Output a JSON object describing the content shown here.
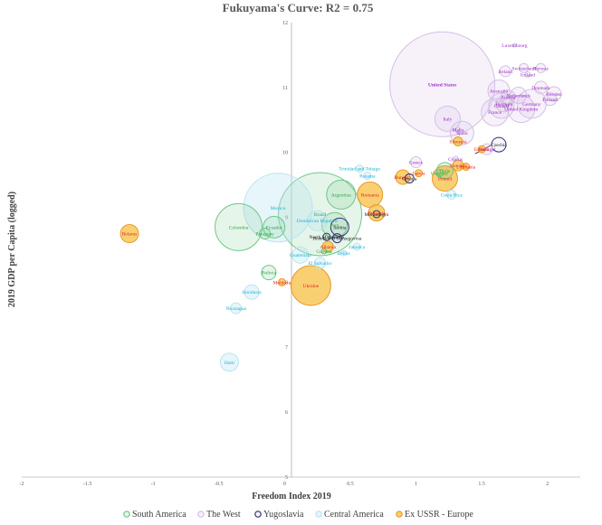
{
  "chart_data": {
    "type": "scatter",
    "title": "Fukuyama's Curve: R2 = 0.75",
    "xlabel": "Freedom Index 2019",
    "ylabel": "2019 GDP per Capita (logged)",
    "xlim": [
      -2,
      2.25
    ],
    "ylim": [
      5,
      12
    ],
    "xticks": [
      "-2",
      "-1.5",
      "-1",
      "-0.5",
      "0",
      "0.5",
      "1",
      "1.5",
      "2"
    ],
    "yticks": [
      "5",
      "6",
      "7",
      "8",
      "9",
      "10",
      "11",
      "12"
    ],
    "groups": [
      {
        "name": "South America",
        "stroke": "#70c787",
        "fill": "rgba(112,199,135,0.18)",
        "label": "#27a845"
      },
      {
        "name": "The West",
        "stroke": "#d5bfe6",
        "fill": "rgba(213,191,230,0.20)",
        "label": "#9b2fc4"
      },
      {
        "name": "Yugoslavia",
        "stroke": "#2a2f7a",
        "fill": "rgba(42,47,122,0.04)",
        "label": "#222222"
      },
      {
        "name": "Central America",
        "stroke": "#b9e4f2",
        "fill": "rgba(185,228,242,0.35)",
        "label": "#19b0d4"
      },
      {
        "name": "Ex USSR - Europe",
        "stroke": "#e89b2a",
        "fill": "rgba(247,192,66,0.75)",
        "label": "#e82020"
      }
    ],
    "points": [
      {
        "label": "United States",
        "x": 1.2,
        "y": 11.05,
        "r": 58,
        "group": 1,
        "bold": true
      },
      {
        "label": "Luxembourg",
        "x": 1.75,
        "y": 11.65,
        "r": 2,
        "group": 1
      },
      {
        "label": "Switzerland",
        "x": 1.82,
        "y": 11.3,
        "r": 5,
        "group": 1
      },
      {
        "label": "Norway",
        "x": 1.95,
        "y": 11.3,
        "r": 5,
        "group": 1
      },
      {
        "label": "Ireland",
        "x": 1.68,
        "y": 11.25,
        "r": 6,
        "group": 1
      },
      {
        "label": "Iceland",
        "x": 1.85,
        "y": 11.2,
        "r": 3,
        "group": 1
      },
      {
        "label": "Denmark",
        "x": 1.95,
        "y": 11.0,
        "r": 7,
        "group": 1
      },
      {
        "label": "Australia",
        "x": 1.63,
        "y": 10.95,
        "r": 12,
        "group": 1
      },
      {
        "label": "Netherlands",
        "x": 1.78,
        "y": 10.88,
        "r": 9,
        "group": 1
      },
      {
        "label": "Sweden",
        "x": 2.05,
        "y": 10.9,
        "r": 8,
        "group": 1
      },
      {
        "label": "Austria",
        "x": 1.7,
        "y": 10.85,
        "r": 8,
        "group": 1
      },
      {
        "label": "Finland",
        "x": 2.02,
        "y": 10.82,
        "r": 7,
        "group": 1
      },
      {
        "label": "Germany",
        "x": 1.88,
        "y": 10.75,
        "r": 16,
        "group": 1
      },
      {
        "label": "Belgium",
        "x": 1.67,
        "y": 10.75,
        "r": 9,
        "group": 1
      },
      {
        "label": "Canada",
        "x": 1.65,
        "y": 10.72,
        "r": 14,
        "group": 1
      },
      {
        "label": "United Kingdom",
        "x": 1.8,
        "y": 10.67,
        "r": 15,
        "group": 1
      },
      {
        "label": "France",
        "x": 1.6,
        "y": 10.62,
        "r": 15,
        "group": 1
      },
      {
        "label": "Malta",
        "x": 1.32,
        "y": 10.35,
        "r": 3,
        "group": 1
      },
      {
        "label": "Italy",
        "x": 1.24,
        "y": 10.52,
        "r": 14,
        "group": 1
      },
      {
        "label": "Spain",
        "x": 1.35,
        "y": 10.3,
        "r": 13,
        "group": 1
      },
      {
        "label": "Greece",
        "x": 1.0,
        "y": 9.85,
        "r": 6,
        "group": 1
      },
      {
        "label": "Cyprus",
        "x": 1.3,
        "y": 9.9,
        "r": 3,
        "group": 1
      },
      {
        "label": "Portugal",
        "x": 1.54,
        "y": 10.05,
        "r": 6,
        "group": 1
      },
      {
        "label": "Slovenia",
        "x": 1.32,
        "y": 10.17,
        "r": 5,
        "group": 4
      },
      {
        "label": "Estonia",
        "x": 1.5,
        "y": 10.05,
        "r": 4,
        "group": 4
      },
      {
        "label": "Czechia",
        "x": 1.63,
        "y": 10.12,
        "r": 8,
        "group": 2
      },
      {
        "label": "Slovakia",
        "x": 1.32,
        "y": 9.8,
        "r": 6,
        "group": 4
      },
      {
        "label": "Lithuania",
        "x": 1.38,
        "y": 9.78,
        "r": 4,
        "group": 4
      },
      {
        "label": "Latvia",
        "x": 1.02,
        "y": 9.68,
        "r": 4,
        "group": 4
      },
      {
        "label": "Hungary",
        "x": 0.9,
        "y": 9.62,
        "r": 8,
        "group": 4
      },
      {
        "label": "Croatia",
        "x": 0.95,
        "y": 9.6,
        "r": 5,
        "group": 2
      },
      {
        "label": "Poland",
        "x": 1.22,
        "y": 9.6,
        "r": 14,
        "group": 4
      },
      {
        "label": "Uruguay",
        "x": 1.18,
        "y": 9.68,
        "r": 4,
        "group": 0
      },
      {
        "label": "Chile",
        "x": 1.22,
        "y": 9.72,
        "r": 9,
        "group": 0
      },
      {
        "label": "Costa Rica",
        "x": 1.27,
        "y": 9.35,
        "r": 5,
        "group": 3
      },
      {
        "label": "Trinidad and Tobago",
        "x": 0.57,
        "y": 9.75,
        "r": 4,
        "group": 3
      },
      {
        "label": "Panama",
        "x": 0.63,
        "y": 9.64,
        "r": 4,
        "group": 3
      },
      {
        "label": "Romania",
        "x": 0.65,
        "y": 9.35,
        "r": 14,
        "group": 4
      },
      {
        "label": "Bulgaria",
        "x": 0.7,
        "y": 9.07,
        "r": 9,
        "group": 4
      },
      {
        "label": "Montenegro",
        "x": 0.7,
        "y": 9.05,
        "r": 4,
        "group": 2
      },
      {
        "label": "Argentina",
        "x": 0.43,
        "y": 9.35,
        "r": 16,
        "group": 0
      },
      {
        "label": "Mexico",
        "x": -0.05,
        "y": 9.15,
        "r": 38,
        "group": 3
      },
      {
        "label": "Brazil",
        "x": 0.27,
        "y": 9.05,
        "r": 46,
        "group": 0
      },
      {
        "label": "Dominican Republic",
        "x": 0.25,
        "y": 8.95,
        "r": 11,
        "group": 3
      },
      {
        "label": "Serbia",
        "x": 0.42,
        "y": 8.85,
        "r": 10,
        "group": 2
      },
      {
        "label": "North Macedonia",
        "x": 0.32,
        "y": 8.7,
        "r": 4,
        "group": 2
      },
      {
        "label": "Bosnia and Herzegovina",
        "x": 0.4,
        "y": 8.68,
        "r": 5,
        "group": 2
      },
      {
        "label": "Jamaica",
        "x": 0.55,
        "y": 8.55,
        "r": 4,
        "group": 3
      },
      {
        "label": "Albania",
        "x": 0.33,
        "y": 8.55,
        "r": 6,
        "group": 4
      },
      {
        "label": "Guyana",
        "x": 0.3,
        "y": 8.48,
        "r": 3,
        "group": 0
      },
      {
        "label": "Belize",
        "x": 0.45,
        "y": 8.45,
        "r": 3,
        "group": 3
      },
      {
        "label": "Guatemala",
        "x": 0.12,
        "y": 8.42,
        "r": 9,
        "group": 3
      },
      {
        "label": "Peru",
        "x": 0.38,
        "y": 8.88,
        "r": 14,
        "group": 0
      },
      {
        "label": "Ecuador",
        "x": -0.08,
        "y": 8.85,
        "r": 12,
        "group": 0
      },
      {
        "label": "Colombia",
        "x": -0.35,
        "y": 8.85,
        "r": 26,
        "group": 0
      },
      {
        "label": "Paraguay",
        "x": -0.15,
        "y": 8.75,
        "r": 6,
        "group": 0
      },
      {
        "label": "El Salvador",
        "x": 0.27,
        "y": 8.3,
        "r": 6,
        "group": 3
      },
      {
        "label": "Bolivia",
        "x": -0.12,
        "y": 8.15,
        "r": 8,
        "group": 0
      },
      {
        "label": "Moldova",
        "x": -0.02,
        "y": 8.0,
        "r": 4,
        "group": 4
      },
      {
        "label": "Ukraine",
        "x": 0.2,
        "y": 7.95,
        "r": 22,
        "group": 4
      },
      {
        "label": "Honduras",
        "x": -0.25,
        "y": 7.85,
        "r": 8,
        "group": 3
      },
      {
        "label": "Nicaragua",
        "x": -0.37,
        "y": 7.6,
        "r": 6,
        "group": 3
      },
      {
        "label": "Haiti",
        "x": -0.42,
        "y": 6.77,
        "r": 10,
        "group": 3
      },
      {
        "label": "Belarus",
        "x": -1.18,
        "y": 8.75,
        "r": 10,
        "group": 4
      }
    ]
  }
}
